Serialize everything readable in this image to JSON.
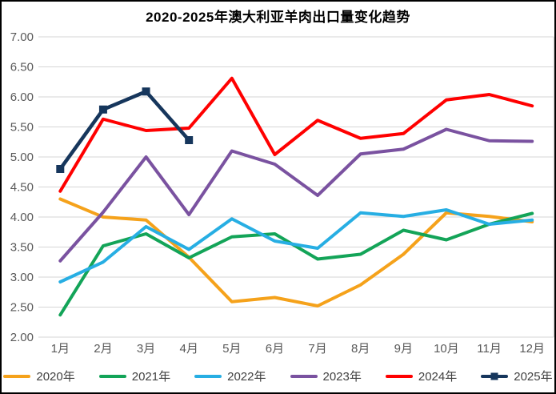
{
  "title": "2020-2025年澳大利亚羊肉出口量变化趋势",
  "chart_data": {
    "type": "line",
    "title": "2020-2025年澳大利亚羊肉出口量变化趋势",
    "categories": [
      "1月",
      "2月",
      "3月",
      "4月",
      "5月",
      "6月",
      "7月",
      "8月",
      "9月",
      "10月",
      "11月",
      "12月"
    ],
    "series": [
      {
        "name": "2020年",
        "color": "#F5A21B",
        "marker": "none",
        "values": [
          4.3,
          4.0,
          3.95,
          3.33,
          2.59,
          2.66,
          2.52,
          2.87,
          3.38,
          4.07,
          4.01,
          3.92
        ]
      },
      {
        "name": "2021年",
        "color": "#13A458",
        "marker": "none",
        "values": [
          2.37,
          3.52,
          3.72,
          3.32,
          3.67,
          3.72,
          3.3,
          3.38,
          3.78,
          3.62,
          3.88,
          4.06
        ]
      },
      {
        "name": "2022年",
        "color": "#27AEE3",
        "marker": "none",
        "values": [
          2.92,
          3.25,
          3.84,
          3.46,
          3.97,
          3.6,
          3.48,
          4.07,
          4.01,
          4.12,
          3.88,
          3.95
        ]
      },
      {
        "name": "2023年",
        "color": "#7A52A0",
        "marker": "none",
        "values": [
          3.27,
          4.08,
          5.0,
          4.04,
          5.1,
          4.88,
          4.36,
          5.05,
          5.13,
          5.46,
          5.27,
          5.26
        ]
      },
      {
        "name": "2024年",
        "color": "#FF0000",
        "marker": "none",
        "values": [
          4.43,
          5.63,
          5.44,
          5.48,
          6.31,
          5.04,
          5.61,
          5.31,
          5.39,
          5.95,
          6.04,
          5.85
        ]
      },
      {
        "name": "2025年",
        "color": "#16365C",
        "marker": "square",
        "values": [
          4.8,
          5.79,
          6.09,
          5.28,
          null,
          null,
          null,
          null,
          null,
          null,
          null,
          null
        ]
      }
    ],
    "ylim": [
      2.0,
      7.0
    ],
    "y_ticks": [
      "7.00",
      "6.50",
      "6.00",
      "5.50",
      "5.00",
      "4.50",
      "4.00",
      "3.50",
      "3.00",
      "2.50",
      "2.00"
    ],
    "xlabel": "",
    "ylabel": "",
    "grid": "horizontal",
    "gridline_color": "#D6D6D6",
    "tick_color": "#595959",
    "legend_position": "bottom"
  }
}
